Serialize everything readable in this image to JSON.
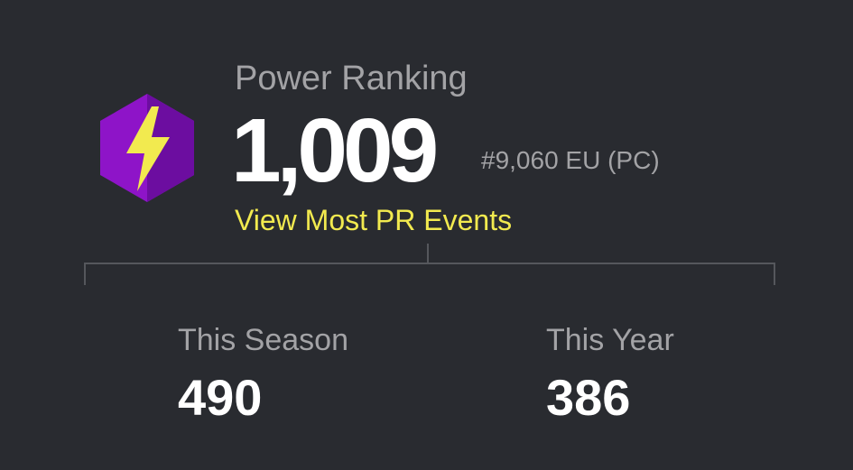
{
  "header": {
    "label": "Power Ranking",
    "value": "1,009",
    "rank": "#9,060 EU (PC)",
    "link": "View Most PR Events"
  },
  "stats": [
    {
      "label": "This Season",
      "value": "490"
    },
    {
      "label": "This Year",
      "value": "386"
    }
  ]
}
